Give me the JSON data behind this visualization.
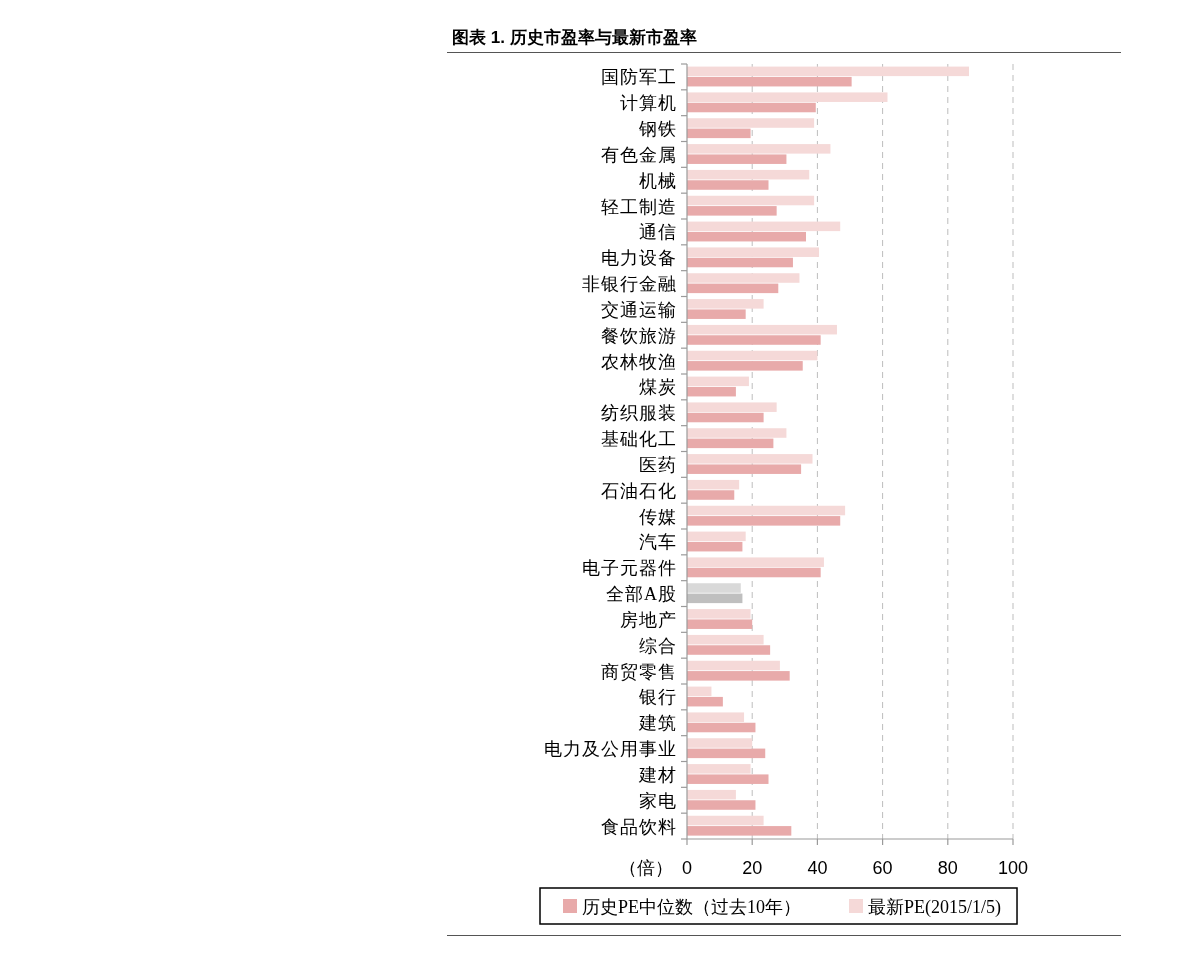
{
  "chart_data": {
    "type": "bar",
    "orientation": "horizontal",
    "title": "图表 1. 历史市盈率与最新市盈率",
    "xlabel": "（倍）",
    "categories": [
      "国防军工",
      "计算机",
      "钢铁",
      "有色金属",
      "机械",
      "轻工制造",
      "通信",
      "电力设备",
      "非银行金融",
      "交通运输",
      "餐饮旅游",
      "农林牧渔",
      "煤炭",
      "纺织服装",
      "基础化工",
      "医药",
      "石油石化",
      "传媒",
      "汽车",
      "电子元器件",
      "全部A股",
      "房地产",
      "综合",
      "商贸零售",
      "银行",
      "建筑",
      "电力及公用事业",
      "建材",
      "家电",
      "食品饮料"
    ],
    "series": [
      {
        "name": "历史PE中位数（过去10年）",
        "color": "#e8aaaa",
        "colors": [
          "#e8aaaa",
          "#e8aaaa",
          "#e8aaaa",
          "#e8aaaa",
          "#e8aaaa",
          "#e8aaaa",
          "#e8aaaa",
          "#e8aaaa",
          "#e8aaaa",
          "#e8aaaa",
          "#e8aaaa",
          "#e8aaaa",
          "#e8aaaa",
          "#e8aaaa",
          "#e8aaaa",
          "#e8aaaa",
          "#e8aaaa",
          "#e8aaaa",
          "#e8aaaa",
          "#e8aaaa",
          "#bfbfbf",
          "#e8aaaa",
          "#e8aaaa",
          "#e8aaaa",
          "#e8aaaa",
          "#e8aaaa",
          "#e8aaaa",
          "#e8aaaa",
          "#e8aaaa",
          "#e8aaaa"
        ],
        "values": [
          50.5,
          39.5,
          19.5,
          30.5,
          25,
          27.5,
          36.5,
          32.5,
          28,
          18,
          41,
          35.5,
          15,
          23.5,
          26.5,
          35,
          14.5,
          47,
          17,
          41,
          17,
          20,
          25.5,
          31.5,
          11,
          21,
          24,
          25,
          21,
          32
        ]
      },
      {
        "name": "最新PE(2015/1/5)",
        "color": "#f5d9d8",
        "colors": [
          "#f5d9d8",
          "#f5d9d8",
          "#f5d9d8",
          "#f5d9d8",
          "#f5d9d8",
          "#f5d9d8",
          "#f5d9d8",
          "#f5d9d8",
          "#f5d9d8",
          "#f5d9d8",
          "#f5d9d8",
          "#f5d9d8",
          "#f5d9d8",
          "#f5d9d8",
          "#f5d9d8",
          "#f5d9d8",
          "#f5d9d8",
          "#f5d9d8",
          "#f5d9d8",
          "#f5d9d8",
          "#d9d9d9",
          "#f5d9d8",
          "#f5d9d8",
          "#f5d9d8",
          "#f5d9d8",
          "#f5d9d8",
          "#f5d9d8",
          "#f5d9d8",
          "#f5d9d8",
          "#f5d9d8"
        ],
        "values": [
          86.5,
          61.5,
          39,
          44,
          37.5,
          39,
          47,
          40.5,
          34.5,
          23.5,
          46,
          40,
          19,
          27.5,
          30.5,
          38.5,
          16,
          48.5,
          18,
          42,
          16.5,
          19.5,
          23.5,
          28.5,
          7.5,
          17.5,
          20,
          19.5,
          15,
          23.5
        ]
      }
    ],
    "xlim": [
      0,
      100
    ],
    "xticks": [
      0,
      20,
      40,
      60,
      80,
      100
    ],
    "grid": "x",
    "legend": "bottom"
  }
}
